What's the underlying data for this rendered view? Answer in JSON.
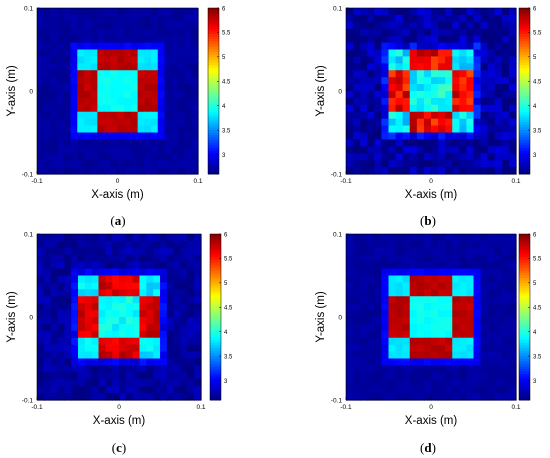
{
  "chart_data": [
    {
      "type": "heatmap",
      "panel_label": "(a)",
      "panel_letter": "a",
      "xlabel": "X-axis (m)",
      "ylabel": "Y-axis (m)",
      "xlim": [
        -0.1,
        0.1
      ],
      "ylim": [
        -0.1,
        0.1
      ],
      "xticks": [
        "-0.1",
        "0",
        "0.1"
      ],
      "yticks": [
        "0.1",
        "0",
        "-0.1"
      ],
      "colorbar": {
        "min": 2.6,
        "max": 6.0,
        "ticks": [
          "6",
          "5.5",
          "5",
          "4.5",
          "4",
          "3.5",
          "3"
        ]
      },
      "values": {
        "background": 2.7,
        "border_band": 3.0,
        "corner_squares": 3.8,
        "edge_bars": 5.8,
        "center_square": 3.9
      },
      "background_noise": "low"
    },
    {
      "type": "heatmap",
      "panel_label": "(b)",
      "panel_letter": "b",
      "xlabel": "X-axis (m)",
      "ylabel": "Y-axis (m)",
      "xlim": [
        -0.1,
        0.1
      ],
      "ylim": [
        -0.1,
        0.1
      ],
      "xticks": [
        "-0.1",
        "0",
        "0.1"
      ],
      "yticks": [
        "0.1",
        "0",
        "-0.1"
      ],
      "colorbar": {
        "min": 2.6,
        "max": 6.0,
        "ticks": [
          "6",
          "5.5",
          "5",
          "4.5",
          "4",
          "3.5",
          "3"
        ]
      },
      "values": {
        "background": 2.7,
        "border_band": 3.0,
        "corner_squares": 3.8,
        "edge_bars": 5.6,
        "center_square": 3.9
      },
      "background_noise": "high"
    },
    {
      "type": "heatmap",
      "panel_label": "(c)",
      "panel_letter": "c",
      "xlabel": "X-axis (m)",
      "ylabel": "Y-axis (m)",
      "xlim": [
        -0.1,
        0.1
      ],
      "ylim": [
        -0.1,
        0.1
      ],
      "xticks": [
        "-0.1",
        "0",
        "0.1"
      ],
      "yticks": [
        "0.1",
        "0",
        "-0.1"
      ],
      "colorbar": {
        "min": 2.6,
        "max": 6.0,
        "ticks": [
          "6",
          "5.5",
          "5",
          "4.5",
          "4",
          "3.5",
          "3"
        ]
      },
      "values": {
        "background": 2.7,
        "border_band": 3.0,
        "corner_squares": 3.8,
        "edge_bars": 5.7,
        "center_square": 3.9
      },
      "background_noise": "medium"
    },
    {
      "type": "heatmap",
      "panel_label": "(d)",
      "panel_letter": "d",
      "xlabel": "X-axis (m)",
      "ylabel": "Y-axis (m)",
      "xlim": [
        -0.1,
        0.1
      ],
      "ylim": [
        -0.1,
        0.1
      ],
      "xticks": [
        "-0.1",
        "0",
        "0.1"
      ],
      "yticks": [
        "0.1",
        "0",
        "-0.1"
      ],
      "colorbar": {
        "min": 2.6,
        "max": 6.0,
        "ticks": [
          "6",
          "5.5",
          "5",
          "4.5",
          "4",
          "3.5",
          "3"
        ]
      },
      "values": {
        "background": 2.7,
        "border_band": 3.0,
        "corner_squares": 3.8,
        "edge_bars": 5.8,
        "center_square": 3.9
      },
      "background_noise": "low"
    }
  ]
}
